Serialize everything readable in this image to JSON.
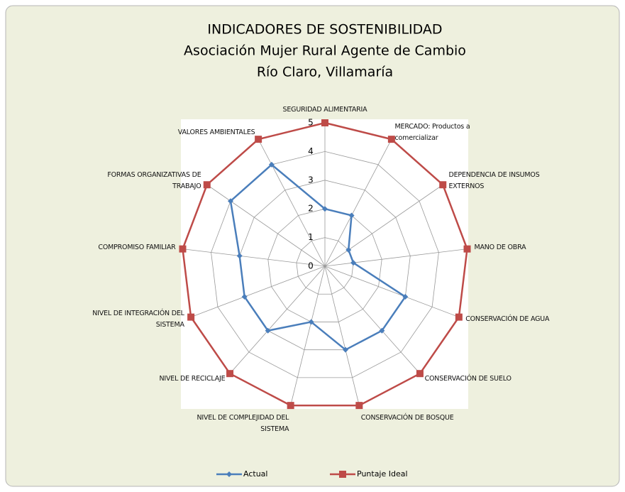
{
  "chart_data": {
    "type": "radar",
    "title": "INDICADORES DE SOSTENIBILIDAD",
    "subtitle": [
      "Asociación Mujer Rural Agente de Cambio",
      "Río Claro, Villamaría"
    ],
    "categories": [
      "SEGURIDAD ALIMENTARIA",
      "MERCADO: Productos a comercializar",
      "DEPENDENCIA DE INSUMOS EXTERNOS",
      "MANO DE OBRA",
      "CONSERVACIÓN DE AGUA",
      "CONSERVACIÓN DE SUELO",
      "CONSERVACIÓN DE BOSQUE",
      "NIVEL DE COMPLEJIDAD DEL SISTEMA",
      "NIVEL DE RECICLAJE",
      "NIVEL DE INTEGRACIÓN DEL SISTEMA",
      "COMPROMISO FAMILIAR",
      "FORMAS ORGANIZATIVAS DE TRABAJO",
      "VALORES AMBIENTALES"
    ],
    "series": [
      {
        "name": "Actual",
        "color": "#4a7ebb",
        "values": [
          2,
          2,
          1,
          1,
          3,
          3,
          3,
          2,
          3,
          3,
          3,
          4,
          4
        ]
      },
      {
        "name": "Puntaje Ideal",
        "color": "#be4b48",
        "values": [
          5,
          5,
          5,
          5,
          5,
          5,
          5,
          5,
          5,
          5,
          5,
          5,
          5
        ]
      }
    ],
    "ylim": [
      0,
      5
    ],
    "yticks": [
      0,
      1,
      2,
      3,
      4,
      5
    ],
    "grid": true,
    "legend": "bottom"
  }
}
